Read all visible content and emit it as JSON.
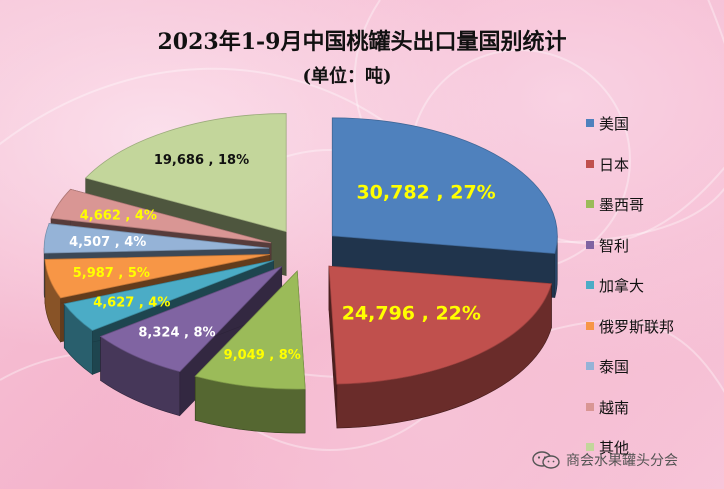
{
  "title": "2023年1-9月中国桃罐头出口量国别统计",
  "subtitle": "(单位：吨)",
  "watermark": "商会水果罐头分会",
  "chart_data": {
    "type": "pie",
    "title": "2023年1-9月中国桃罐头出口量国别统计",
    "subtitle": "(单位：吨)",
    "legend_position": "right",
    "categories": [
      "美国",
      "日本",
      "墨西哥",
      "智利",
      "加拿大",
      "俄罗斯联邦",
      "泰国",
      "越南",
      "其他"
    ],
    "values": [
      30782,
      24796,
      9049,
      8324,
      4627,
      5987,
      4507,
      4662,
      19686
    ],
    "labels": [
      "30,782 , 27%",
      "24,796 , 22%",
      "9,049 , 8%",
      "8,324 , 8%",
      "4,627 , 4%",
      "5,987 , 5%",
      "4,507 , 4%",
      "4,662 , 4%",
      "19,686 , 18%"
    ],
    "colors": [
      "#4f81bd",
      "#c0504d",
      "#9bbb59",
      "#8064a2",
      "#4bacc6",
      "#f79646",
      "#95b3d7",
      "#d99694",
      "#c3d69b"
    ],
    "label_colors": [
      "#ffff00",
      "#ffff00",
      "#ffff00",
      "#ffffff",
      "#ffff00",
      "#ffff00",
      "#ffffff",
      "#ffff00",
      "#111111"
    ]
  }
}
